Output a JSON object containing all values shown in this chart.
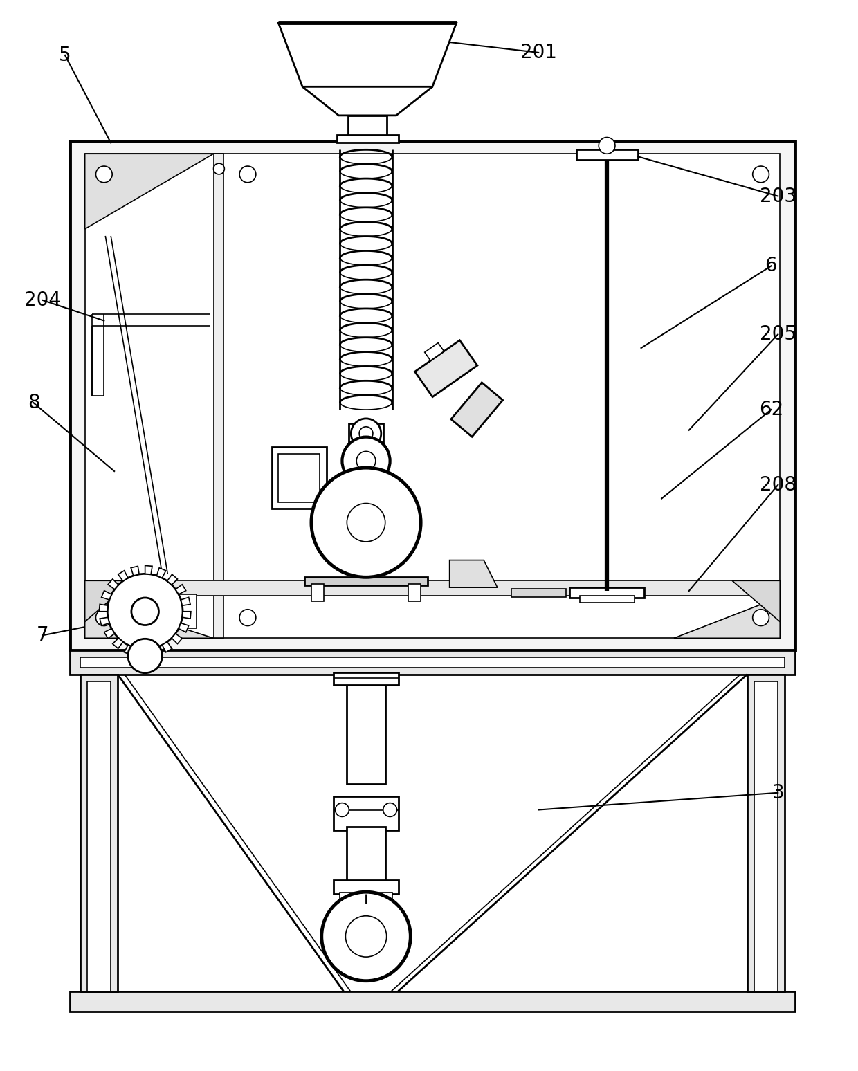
{
  "bg_color": "#ffffff",
  "line_color": "#000000",
  "fig_width": 12.4,
  "fig_height": 15.48,
  "lw_thick": 3.5,
  "lw_med": 2.0,
  "lw_thin": 1.2
}
